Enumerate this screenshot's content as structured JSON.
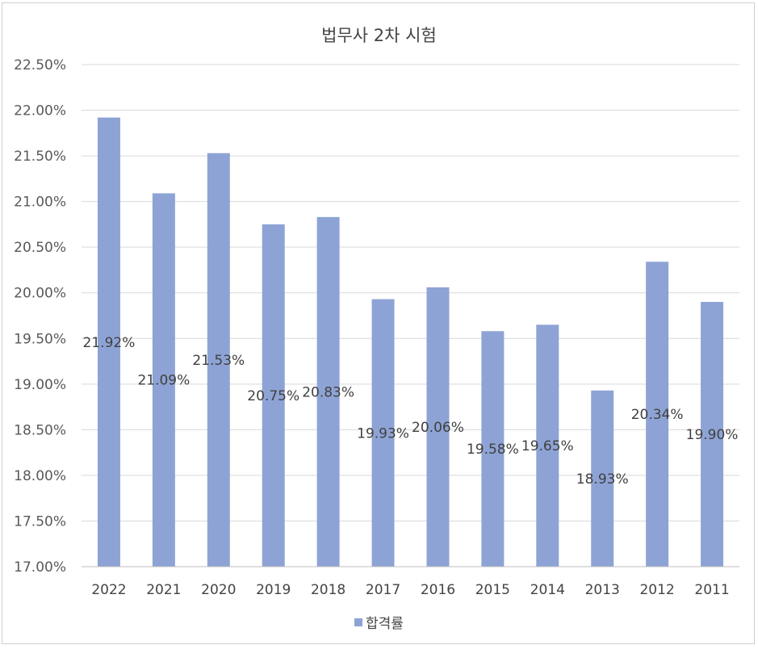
{
  "chart_data": {
    "type": "bar",
    "title": "법무사 2차 시험",
    "categories": [
      "2022",
      "2021",
      "2020",
      "2019",
      "2018",
      "2017",
      "2016",
      "2015",
      "2014",
      "2013",
      "2012",
      "2011"
    ],
    "series": [
      {
        "name": "합격률",
        "values": [
          21.92,
          21.09,
          21.53,
          20.75,
          20.83,
          19.93,
          20.06,
          19.58,
          19.65,
          18.93,
          20.34,
          19.9
        ],
        "data_labels": [
          "21.92%",
          "21.09%",
          "21.53%",
          "20.75%",
          "20.83%",
          "19.93%",
          "20.06%",
          "19.58%",
          "19.65%",
          "18.93%",
          "20.34%",
          "19.90%"
        ]
      }
    ],
    "ylim": [
      17.0,
      22.5
    ],
    "ytick_values": [
      17.0,
      17.5,
      18.0,
      18.5,
      19.0,
      19.5,
      20.0,
      20.5,
      21.0,
      21.5,
      22.0,
      22.5
    ],
    "ytick_labels": [
      "17.00%",
      "17.50%",
      "18.00%",
      "18.50%",
      "19.00%",
      "19.50%",
      "20.00%",
      "20.50%",
      "21.00%",
      "21.50%",
      "22.00%",
      "22.50%"
    ],
    "xlabel": "",
    "ylabel": "",
    "grid": true,
    "legend_position": "bottom",
    "bar_color": "#8ea3d5"
  }
}
